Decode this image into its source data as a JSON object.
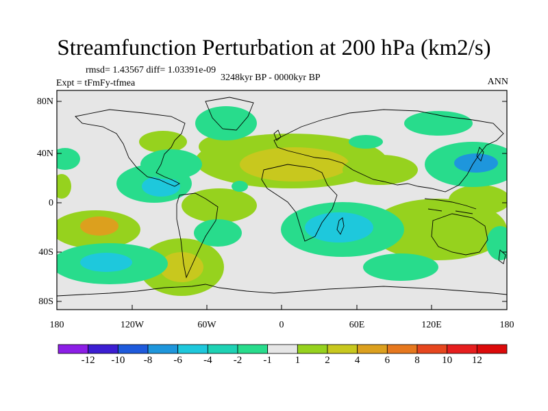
{
  "title": "Streamfunction Perturbation at 200 hPa (km2/s)",
  "subtitle_left_top": "rmsd= 1.43567 diff= 1.03391e-09",
  "subtitle_left": "Expt = tFmFy-tfmea",
  "subtitle_center": "3248kyr BP - 0000kyr BP",
  "subtitle_right": "ANN",
  "lat_labels": [
    "80N",
    "40N",
    "0",
    "40S",
    "80S"
  ],
  "lon_labels": [
    "180",
    "120W",
    "60W",
    "0",
    "60E",
    "120E",
    "180"
  ],
  "colorbar": {
    "labels": [
      "-12",
      "-10",
      "-8",
      "-6",
      "-4",
      "-2",
      "-1",
      "1",
      "2",
      "4",
      "6",
      "8",
      "10",
      "12"
    ],
    "colors": [
      "#8c1ee6",
      "#3c1ed2",
      "#1e5adc",
      "#1e96dc",
      "#1ec8dc",
      "#1ed2b4",
      "#28dc8c",
      "#e6e6e6",
      "#96d21e",
      "#c8c81e",
      "#dca01e",
      "#e6781e",
      "#e6461e",
      "#e61e1e",
      "#dc0a0a"
    ]
  },
  "map_colors": {
    "background": "#e6e6e6",
    "pos1": "#96d21e",
    "pos2": "#c8c81e",
    "pos3": "#dca01e",
    "neg1": "#28dc8c",
    "neg2": "#1ed2b4",
    "neg3": "#1ec8dc",
    "neg4": "#1e96dc"
  }
}
